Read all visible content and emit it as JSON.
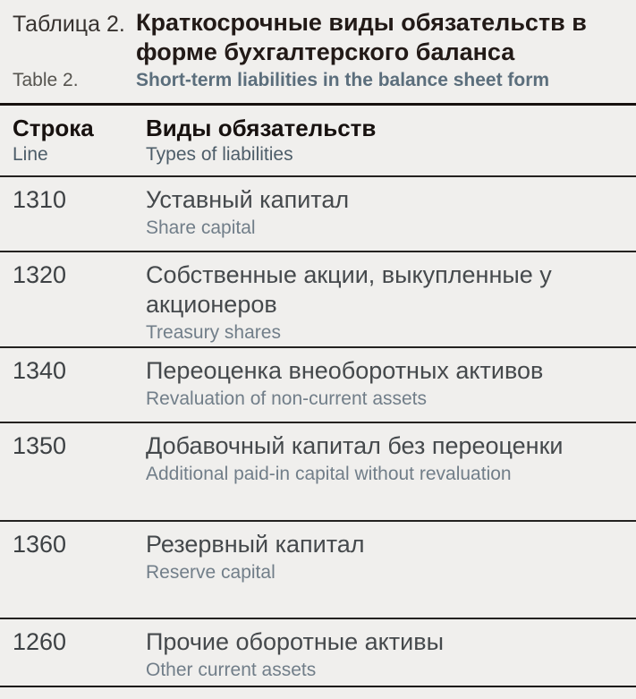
{
  "caption": {
    "label_ru": "Таблица 2.",
    "title_ru": "Краткосрочные виды обязательств в форме бухгалтерского баланса",
    "label_en": "Table 2.",
    "title_en": "Short-term liabilities in the balance sheet form"
  },
  "table": {
    "header": {
      "col1_ru": "Строка",
      "col1_en": "Line",
      "col2_ru": "Виды обязательств",
      "col2_en": "Types of liabilities"
    },
    "rows": [
      {
        "line": "1310",
        "ru": "Уставный капитал",
        "en": "Share capital"
      },
      {
        "line": "1320",
        "ru": "Собственные акции, выкупленные у акционеров",
        "en": "Treasury shares"
      },
      {
        "line": "1340",
        "ru": "Переоценка внеоборотных активов",
        "en": "Revaluation of non-current assets"
      },
      {
        "line": "1350",
        "ru": "Добавочный капитал без переоценки",
        "en": "Additional paid-in capital without revaluation"
      },
      {
        "line": "1360",
        "ru": "Резервный капитал",
        "en": "Reserve capital"
      },
      {
        "line": "1260",
        "ru": "Прочие оборотные активы",
        "en": "Other current assets"
      }
    ]
  },
  "colors": {
    "background": "#f0efed",
    "title_ru": "#221a17",
    "title_en": "#5b6e7c",
    "rule": "#17110f",
    "row_text_ru": "#45494c",
    "row_text_en": "#717e89"
  }
}
